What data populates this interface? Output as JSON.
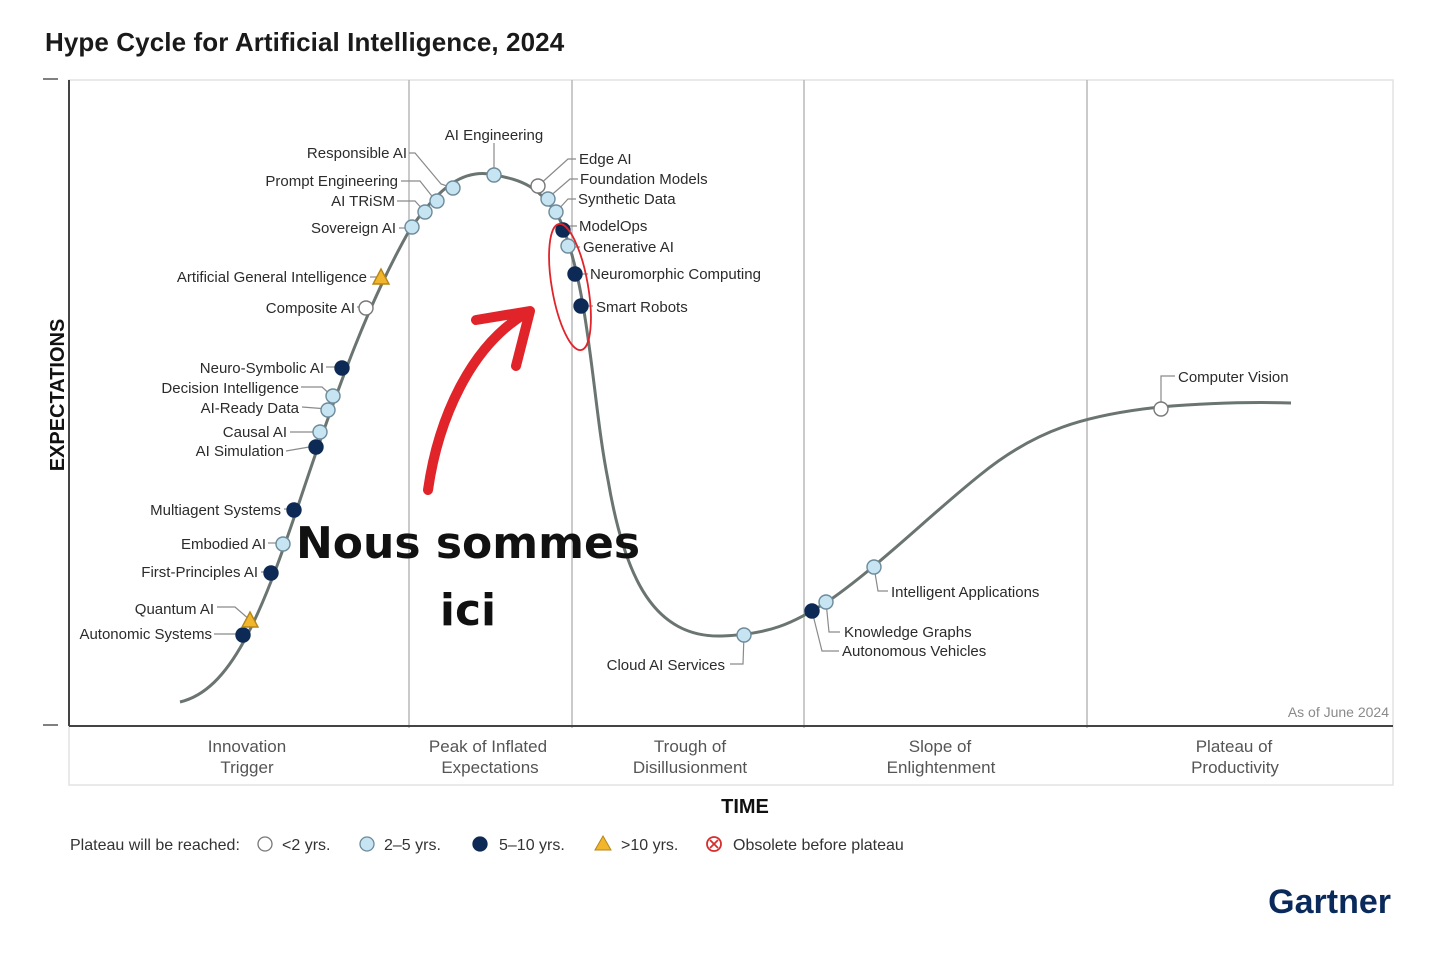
{
  "title": "Hype Cycle for Artificial Intelligence, 2024",
  "y_axis_label": "EXPECTATIONS",
  "x_axis_label": "TIME",
  "as_of": "As of June 2024",
  "brand": "Gartner",
  "annotation": {
    "line1": "Nous sommes",
    "line2": "ici"
  },
  "colors": {
    "lt2": "#ffffff",
    "y2to5": "#c6e4f2",
    "y5to10": "#0c2a55",
    "gt10": "#f1b62b",
    "obsolete": "#d72d2d",
    "curve": "#6a7470",
    "arrow": "#e0242a"
  },
  "phases": [
    {
      "line1": "Innovation",
      "line2": "Trigger"
    },
    {
      "line1": "Peak of Inflated",
      "line2": "Expectations"
    },
    {
      "line1": "Trough of",
      "line2": "Disillusionment"
    },
    {
      "line1": "Slope of",
      "line2": "Enlightenment"
    },
    {
      "line1": "Plateau of",
      "line2": "Productivity"
    }
  ],
  "legend": {
    "label": "Plateau will be reached:",
    "items": [
      {
        "key": "lt2",
        "label": "<2 yrs."
      },
      {
        "key": "y2to5",
        "label": "2–5 yrs."
      },
      {
        "key": "y5to10",
        "label": "5–10 yrs."
      },
      {
        "key": "gt10",
        "label": ">10 yrs."
      },
      {
        "key": "obsolete",
        "label": "Obsolete before plateau"
      }
    ]
  },
  "technologies": [
    {
      "name": "Autonomic Systems",
      "cat": "y5to10"
    },
    {
      "name": "Quantum AI",
      "cat": "gt10"
    },
    {
      "name": "First-Principles AI",
      "cat": "y5to10"
    },
    {
      "name": "Embodied AI",
      "cat": "y2to5"
    },
    {
      "name": "Multiagent Systems",
      "cat": "y5to10"
    },
    {
      "name": "AI Simulation",
      "cat": "y5to10"
    },
    {
      "name": "Causal AI",
      "cat": "y2to5"
    },
    {
      "name": "AI-Ready Data",
      "cat": "y2to5"
    },
    {
      "name": "Decision Intelligence",
      "cat": "y2to5"
    },
    {
      "name": "Neuro-Symbolic AI",
      "cat": "y5to10"
    },
    {
      "name": "Composite AI",
      "cat": "lt2"
    },
    {
      "name": "Artificial General Intelligence",
      "cat": "gt10"
    },
    {
      "name": "Sovereign AI",
      "cat": "y2to5"
    },
    {
      "name": "AI TRiSM",
      "cat": "y2to5"
    },
    {
      "name": "Prompt Engineering",
      "cat": "y2to5"
    },
    {
      "name": "Responsible AI",
      "cat": "y2to5"
    },
    {
      "name": "AI Engineering",
      "cat": "y2to5"
    },
    {
      "name": "Edge AI",
      "cat": "lt2"
    },
    {
      "name": "Foundation Models",
      "cat": "y2to5"
    },
    {
      "name": "Synthetic Data",
      "cat": "y2to5"
    },
    {
      "name": "ModelOps",
      "cat": "y5to10"
    },
    {
      "name": "Generative AI",
      "cat": "y2to5"
    },
    {
      "name": "Neuromorphic Computing",
      "cat": "y5to10"
    },
    {
      "name": "Smart Robots",
      "cat": "y5to10"
    },
    {
      "name": "Cloud AI Services",
      "cat": "y2to5"
    },
    {
      "name": "Autonomous Vehicles",
      "cat": "y5to10"
    },
    {
      "name": "Knowledge Graphs",
      "cat": "y2to5"
    },
    {
      "name": "Intelligent Applications",
      "cat": "y2to5"
    },
    {
      "name": "Computer Vision",
      "cat": "lt2"
    }
  ]
}
